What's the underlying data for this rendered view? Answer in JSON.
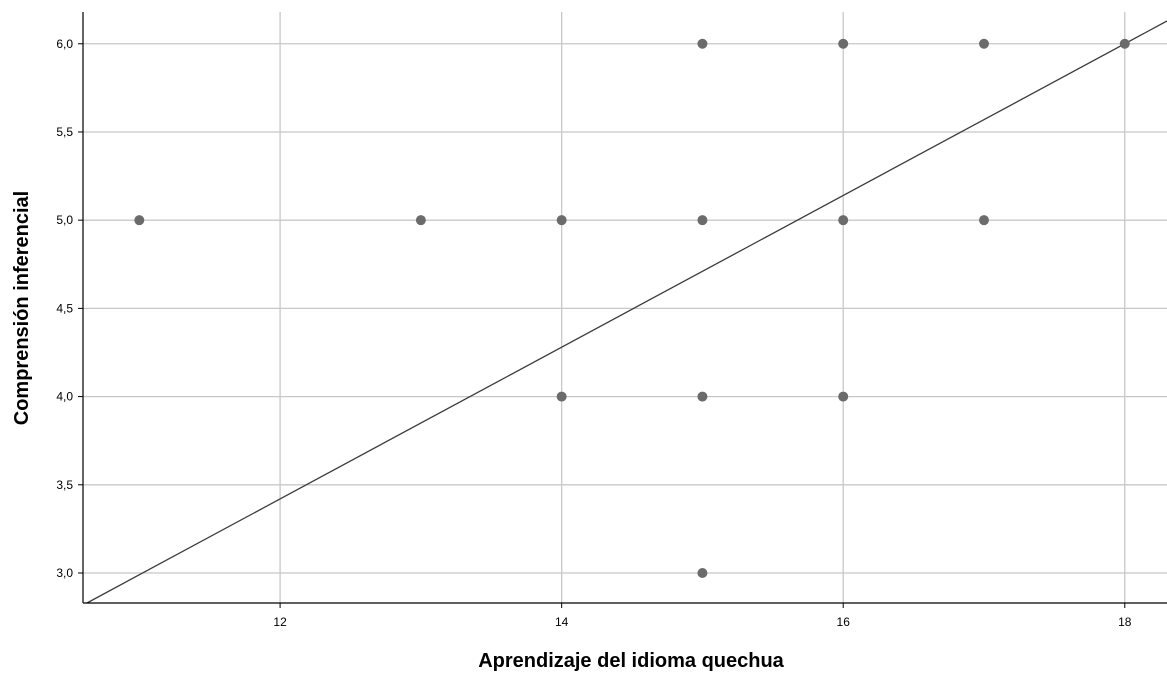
{
  "chart_data": {
    "type": "scatter",
    "xlabel": "Aprendizaje del idioma quechua",
    "ylabel": "Comprensión inferencial",
    "xlim": [
      10.6,
      18.3
    ],
    "ylim": [
      2.83,
      6.18
    ],
    "x_ticks": [
      12,
      14,
      16,
      18
    ],
    "x_tick_labels": [
      "12",
      "14",
      "16",
      "18"
    ],
    "y_ticks": [
      3.0,
      3.5,
      4.0,
      4.5,
      5.0,
      5.5,
      6.0
    ],
    "y_tick_labels": [
      "3,0",
      "3,5",
      "4,0",
      "4,5",
      "5,0",
      "5,5",
      "6,0"
    ],
    "grid": true,
    "marker_color": "#6b6b6b",
    "points": [
      {
        "x": 11,
        "y": 5
      },
      {
        "x": 13,
        "y": 5
      },
      {
        "x": 14,
        "y": 5
      },
      {
        "x": 14,
        "y": 4
      },
      {
        "x": 15,
        "y": 6
      },
      {
        "x": 15,
        "y": 5
      },
      {
        "x": 15,
        "y": 4
      },
      {
        "x": 15,
        "y": 3
      },
      {
        "x": 16,
        "y": 6
      },
      {
        "x": 16,
        "y": 5
      },
      {
        "x": 16,
        "y": 4
      },
      {
        "x": 17,
        "y": 6
      },
      {
        "x": 17,
        "y": 5
      },
      {
        "x": 18,
        "y": 6
      }
    ],
    "fit_line": {
      "slope": 0.43,
      "intercept": -1.74,
      "color": "#3c3c3c"
    }
  }
}
